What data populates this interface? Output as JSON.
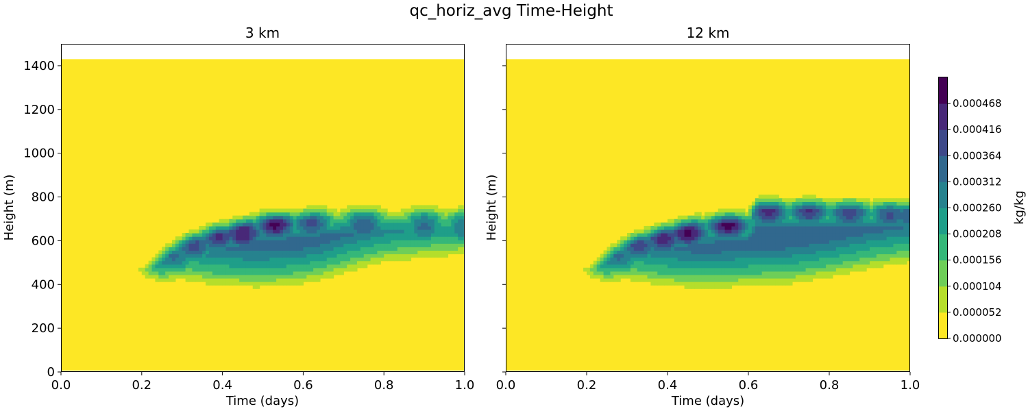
{
  "figure": {
    "title": "qc_horiz_avg Time-Height"
  },
  "chart_data": [
    {
      "type": "heatmap",
      "title": "3 km",
      "xlabel": "Time (days)",
      "ylabel": "Height (m)",
      "xlim": [
        0.0,
        1.0
      ],
      "ylim": [
        0,
        1500
      ],
      "x_ticks": [
        "0.0",
        "0.2",
        "0.4",
        "0.6",
        "0.8",
        "1.0"
      ],
      "y_ticks": [
        "0",
        "200",
        "400",
        "600",
        "800",
        "1000",
        "1200",
        "1400"
      ],
      "data_top": 1430,
      "cloud_top": [
        [
          0.2,
          460
        ],
        [
          0.23,
          500
        ],
        [
          0.26,
          560
        ],
        [
          0.31,
          620
        ],
        [
          0.38,
          665
        ],
        [
          0.48,
          715
        ],
        [
          0.6,
          735
        ],
        [
          0.7,
          760
        ],
        [
          0.8,
          760
        ],
        [
          0.9,
          760
        ],
        [
          1.0,
          760
        ]
      ],
      "cloud_base": [
        [
          0.2,
          440
        ],
        [
          0.25,
          395
        ],
        [
          0.3,
          370
        ],
        [
          0.38,
          345
        ],
        [
          0.48,
          335
        ],
        [
          0.55,
          340
        ],
        [
          0.6,
          350
        ],
        [
          0.65,
          370
        ],
        [
          0.7,
          400
        ],
        [
          0.8,
          450
        ],
        [
          0.9,
          470
        ],
        [
          1.0,
          485
        ]
      ],
      "cores": [
        {
          "t": 0.24,
          "z": 490,
          "v": 0.00028
        },
        {
          "t": 0.28,
          "z": 530,
          "v": 0.00032
        },
        {
          "t": 0.33,
          "z": 580,
          "v": 0.00039
        },
        {
          "t": 0.39,
          "z": 620,
          "v": 0.00043
        },
        {
          "t": 0.45,
          "z": 635,
          "v": 0.00047
        },
        {
          "t": 0.53,
          "z": 680,
          "v": 0.0005
        },
        {
          "t": 0.62,
          "z": 680,
          "v": 0.00038
        },
        {
          "t": 0.75,
          "z": 670,
          "v": 0.00036
        },
        {
          "t": 0.9,
          "z": 665,
          "v": 0.00033
        },
        {
          "t": 1.0,
          "z": 660,
          "v": 0.00031
        }
      ]
    },
    {
      "type": "heatmap",
      "title": "12 km",
      "xlabel": "Time (days)",
      "ylabel": "Height (m)",
      "xlim": [
        0.0,
        1.0
      ],
      "ylim": [
        0,
        1500
      ],
      "x_ticks": [
        "0.0",
        "0.2",
        "0.4",
        "0.6",
        "0.8",
        "1.0"
      ],
      "y_ticks": [],
      "data_top": 1430,
      "cloud_top": [
        [
          0.2,
          460
        ],
        [
          0.23,
          500
        ],
        [
          0.26,
          560
        ],
        [
          0.31,
          620
        ],
        [
          0.38,
          665
        ],
        [
          0.48,
          710
        ],
        [
          0.6,
          720
        ],
        [
          0.62,
          780
        ],
        [
          0.8,
          780
        ],
        [
          1.0,
          780
        ]
      ],
      "cloud_base": [
        [
          0.2,
          440
        ],
        [
          0.25,
          395
        ],
        [
          0.3,
          370
        ],
        [
          0.38,
          345
        ],
        [
          0.48,
          330
        ],
        [
          0.55,
          335
        ],
        [
          0.62,
          345
        ],
        [
          0.7,
          350
        ],
        [
          0.8,
          380
        ],
        [
          0.9,
          420
        ],
        [
          1.0,
          450
        ]
      ],
      "cores": [
        {
          "t": 0.24,
          "z": 490,
          "v": 0.00028
        },
        {
          "t": 0.28,
          "z": 530,
          "v": 0.00032
        },
        {
          "t": 0.33,
          "z": 580,
          "v": 0.0004
        },
        {
          "t": 0.39,
          "z": 610,
          "v": 0.00045
        },
        {
          "t": 0.45,
          "z": 640,
          "v": 0.00048
        },
        {
          "t": 0.55,
          "z": 680,
          "v": 0.00051
        },
        {
          "t": 0.65,
          "z": 740,
          "v": 0.00045
        },
        {
          "t": 0.75,
          "z": 740,
          "v": 0.00042
        },
        {
          "t": 0.85,
          "z": 730,
          "v": 0.0004
        },
        {
          "t": 0.95,
          "z": 720,
          "v": 0.00038
        },
        {
          "t": 1.0,
          "z": 715,
          "v": 0.00036
        }
      ]
    }
  ],
  "colorbar": {
    "label": "kg/kg",
    "min": 0.0,
    "max": 0.00052,
    "ticks": [
      "0.000000",
      "0.000052",
      "0.000104",
      "0.000156",
      "0.000208",
      "0.000260",
      "0.000312",
      "0.000364",
      "0.000416",
      "0.000468"
    ],
    "colors": [
      "#fde725",
      "#b5de2b",
      "#6ece58",
      "#35b779",
      "#1f9e89",
      "#26828e",
      "#31688e",
      "#3e4989",
      "#482878",
      "#440154"
    ]
  }
}
